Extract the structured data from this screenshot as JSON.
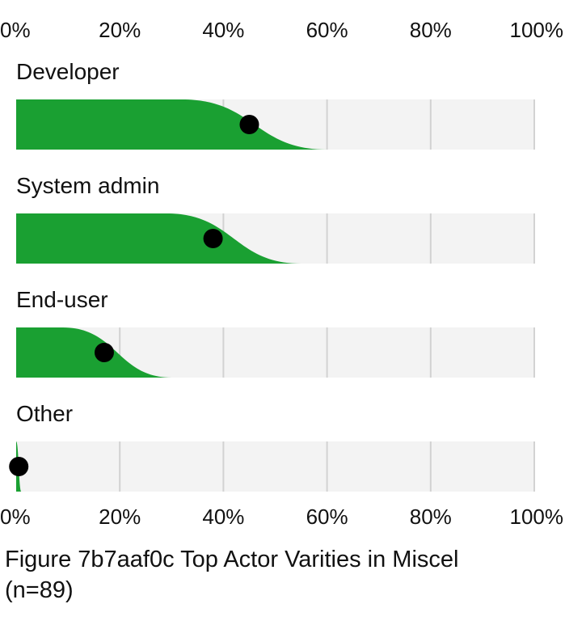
{
  "chart_data": {
    "type": "bar",
    "caption_lines": [
      "Figure 7b7aaf0c Top Actor Varities in Miscel",
      "(n=89)"
    ],
    "xlim": [
      0,
      100
    ],
    "ticks": [
      "0%",
      "20%",
      "40%",
      "60%",
      "80%",
      "100%"
    ],
    "tick_values": [
      0,
      20,
      40,
      60,
      80,
      100
    ],
    "grid": true,
    "colors": {
      "fill": "#1aa032",
      "background": "#f3f3f3",
      "grid": "#d2d2d2",
      "point": "#000000"
    },
    "categories": [
      "Developer",
      "System admin",
      "End-user",
      "Other"
    ],
    "values": [
      45,
      38,
      17,
      0.5
    ],
    "interval_low": [
      32,
      29,
      9,
      0
    ],
    "interval_high": [
      60,
      55,
      30,
      1
    ]
  }
}
